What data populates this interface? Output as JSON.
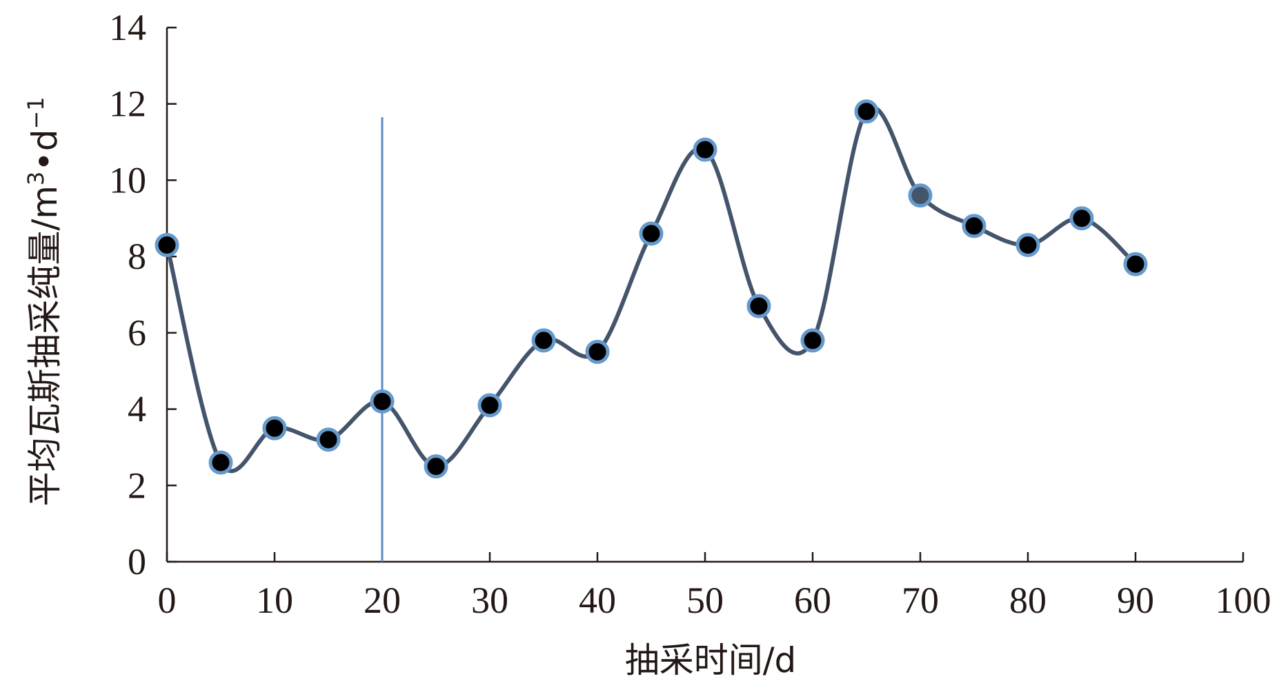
{
  "chart_data": {
    "type": "line",
    "title": "",
    "xlabel": "抽采时间/d",
    "ylabel_main": "平均瓦斯抽采纯量/m",
    "ylabel_sup1": "3",
    "ylabel_mid": "•d",
    "ylabel_sup2": "−1",
    "xlim": [
      0,
      100
    ],
    "ylim": [
      0,
      14
    ],
    "x_ticks": [
      0,
      10,
      20,
      30,
      40,
      50,
      60,
      70,
      80,
      90,
      100
    ],
    "y_ticks": [
      0,
      2,
      4,
      6,
      8,
      10,
      12,
      14
    ],
    "x": [
      0,
      5,
      10,
      15,
      20,
      25,
      30,
      35,
      40,
      45,
      50,
      55,
      60,
      65,
      70,
      75,
      80,
      85,
      90
    ],
    "y": [
      8.3,
      2.6,
      3.5,
      3.2,
      4.2,
      2.5,
      4.1,
      5.8,
      5.5,
      8.6,
      10.8,
      6.7,
      5.8,
      11.8,
      9.6,
      8.8,
      8.3,
      9.0,
      7.8
    ],
    "smooth": true,
    "vertical_line_x": 20,
    "grid": false,
    "legend": "none",
    "colors": {
      "line": "#44546a",
      "marker_fill": "#000000",
      "marker_edge": "#6699cc",
      "highlight_fill": "#44546a",
      "vline": "#5b8cc4",
      "axis": "#231815"
    },
    "highlight_index": 14
  }
}
